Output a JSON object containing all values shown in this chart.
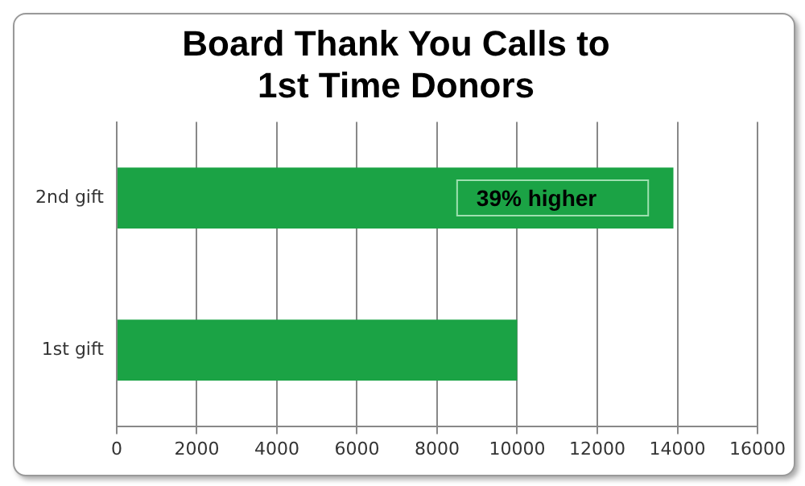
{
  "chart_data": {
    "type": "bar",
    "orientation": "horizontal",
    "title": "Board Thank You Calls to\n1st Time Donors",
    "categories": [
      "2nd gift",
      "1st gift"
    ],
    "values": [
      13900,
      10000
    ],
    "color": "#1ba345",
    "xlim": [
      0,
      16000
    ],
    "xticks": [
      0,
      2000,
      4000,
      6000,
      8000,
      10000,
      12000,
      14000,
      16000
    ],
    "grid": "x",
    "legend": false,
    "annotations": [
      "39% higher"
    ]
  }
}
